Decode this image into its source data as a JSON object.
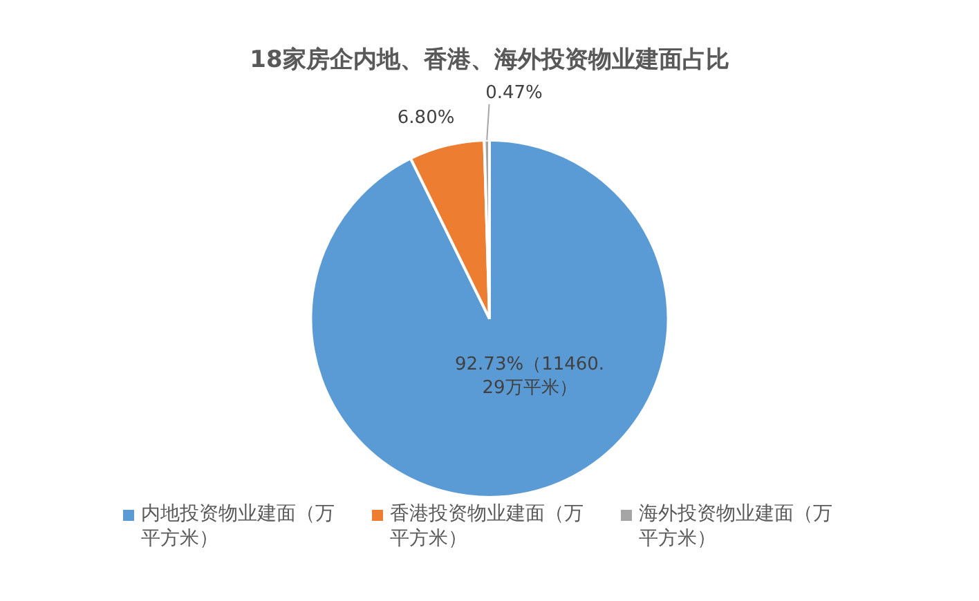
{
  "chart_data": {
    "type": "pie",
    "title": "18家房企内地、香港、海外投资物业建面占比",
    "categories": [
      "内地投资物业建面（万平方米）",
      "香港投资物业建面（万平方米）",
      "海外投资物业建面（万平方米）"
    ],
    "values": [
      92.73,
      6.8,
      0.47
    ],
    "colors": [
      "#5b9bd5",
      "#ed7d31",
      "#a5a5a5"
    ],
    "value_labels": [
      "92.73%（11460.29万平米）",
      "6.80%",
      "0.47%"
    ],
    "legend": "bottom"
  }
}
